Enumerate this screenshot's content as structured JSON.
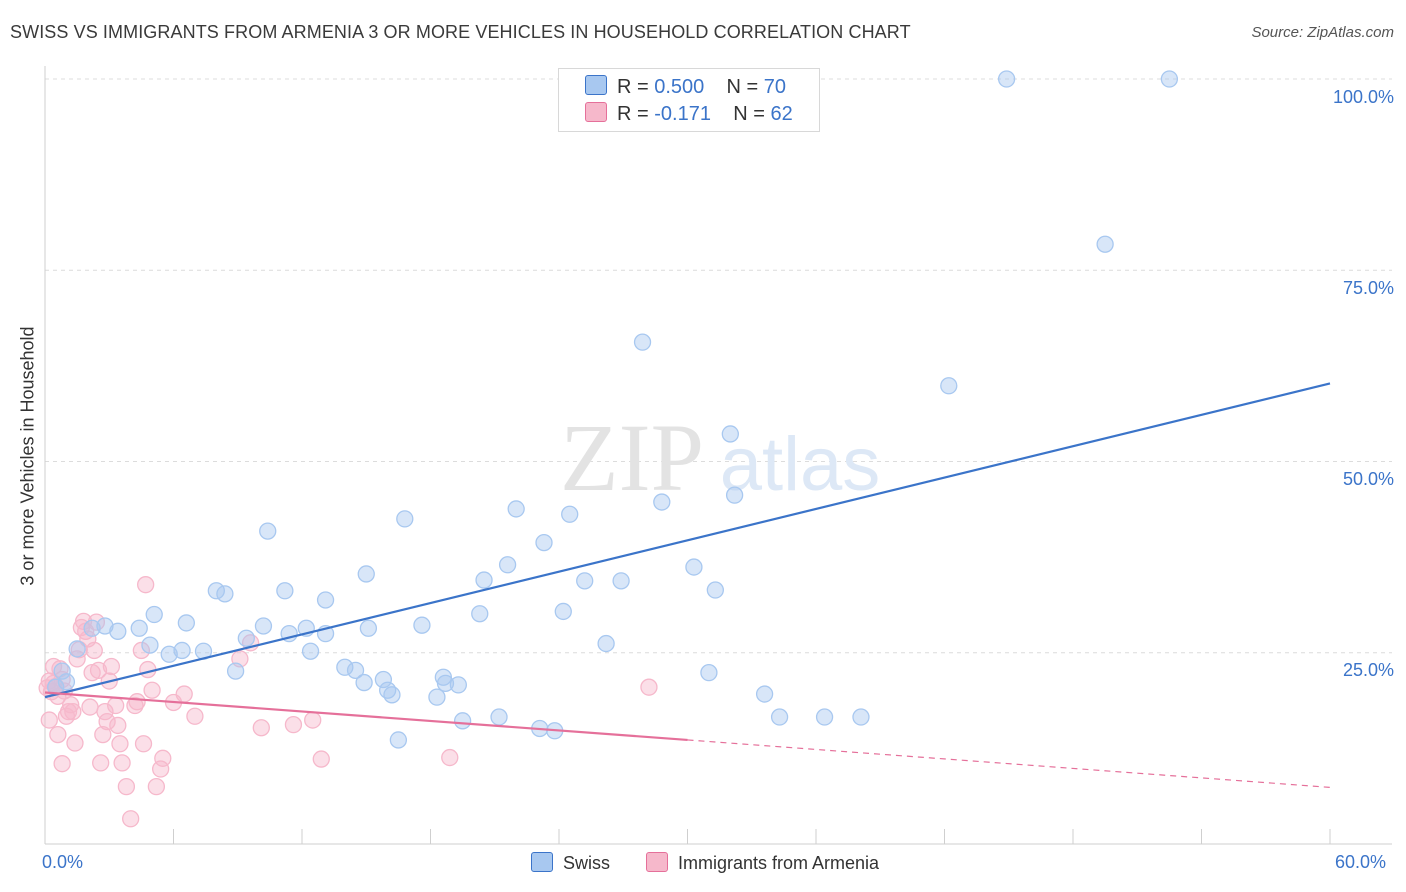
{
  "header": {
    "title": "SWISS VS IMMIGRANTS FROM ARMENIA 3 OR MORE VEHICLES IN HOUSEHOLD CORRELATION CHART",
    "source": "Source: ZipAtlas.com"
  },
  "watermark": {
    "zip": "ZIP",
    "atlas": "atlas"
  },
  "legend": {
    "rows": [
      {
        "r_label": "R =",
        "r_value": "0.500",
        "n_label": "N =",
        "n_value": "70",
        "color": "#a8c8f0"
      },
      {
        "r_label": "R =",
        "r_value": "-0.171",
        "n_label": "N =",
        "n_value": "62",
        "color": "#f6b8cb"
      }
    ]
  },
  "bottom_legend": {
    "swiss": "Swiss",
    "armenia": "Immigrants from Armenia"
  },
  "axes": {
    "ylabel": "3 or more Vehicles in Household",
    "x_min_label": "0.0%",
    "x_max_label": "60.0%",
    "y_ticks": [
      "100.0%",
      "75.0%",
      "50.0%",
      "25.0%"
    ]
  },
  "chart_data": {
    "type": "scatter",
    "title": "SWISS VS IMMIGRANTS FROM ARMENIA 3 OR MORE VEHICLES IN HOUSEHOLD CORRELATION CHART",
    "xlabel": "",
    "ylabel": "3 or more Vehicles in Household",
    "xlim": [
      0,
      60
    ],
    "ylim": [
      0,
      102
    ],
    "y_ticks": [
      25,
      50,
      75,
      100
    ],
    "grid": true,
    "legend_position": "top-center",
    "series": [
      {
        "name": "Swiss",
        "color": "#3b74c9",
        "fill": "#a8c8f0",
        "trend": {
          "x0": 0,
          "y0": 19.2,
          "x1": 60,
          "y1": 60.2,
          "dashed_from": null
        },
        "points": [
          [
            1.0,
            21.2
          ],
          [
            0.8,
            22.6
          ],
          [
            0.5,
            20.5
          ],
          [
            1.5,
            25.5
          ],
          [
            2.2,
            28.2
          ],
          [
            2.8,
            28.5
          ],
          [
            3.4,
            27.8
          ],
          [
            4.4,
            28.2
          ],
          [
            5.1,
            30.0
          ],
          [
            4.9,
            26.0
          ],
          [
            5.8,
            24.8
          ],
          [
            6.4,
            25.3
          ],
          [
            6.6,
            28.9
          ],
          [
            7.4,
            25.2
          ],
          [
            8.0,
            33.1
          ],
          [
            8.4,
            32.7
          ],
          [
            8.9,
            22.6
          ],
          [
            9.4,
            26.9
          ],
          [
            10.2,
            28.5
          ],
          [
            10.4,
            40.9
          ],
          [
            11.2,
            33.1
          ],
          [
            11.4,
            27.5
          ],
          [
            12.4,
            25.2
          ],
          [
            12.2,
            28.2
          ],
          [
            13.1,
            27.5
          ],
          [
            13.1,
            31.9
          ],
          [
            14.0,
            23.1
          ],
          [
            14.5,
            22.7
          ],
          [
            14.9,
            21.1
          ],
          [
            15.0,
            35.3
          ],
          [
            15.1,
            28.2
          ],
          [
            15.8,
            21.5
          ],
          [
            16.0,
            20.1
          ],
          [
            16.5,
            13.6
          ],
          [
            16.2,
            19.5
          ],
          [
            16.8,
            42.5
          ],
          [
            17.6,
            28.6
          ],
          [
            18.3,
            19.2
          ],
          [
            18.6,
            21.8
          ],
          [
            18.7,
            21.0
          ],
          [
            19.3,
            20.8
          ],
          [
            19.5,
            16.1
          ],
          [
            20.3,
            30.1
          ],
          [
            20.5,
            34.5
          ],
          [
            21.2,
            16.6
          ],
          [
            21.6,
            36.5
          ],
          [
            22.0,
            43.8
          ],
          [
            23.1,
            15.1
          ],
          [
            23.3,
            39.4
          ],
          [
            23.8,
            14.8
          ],
          [
            24.5,
            43.1
          ],
          [
            24.2,
            30.4
          ],
          [
            25.2,
            34.4
          ],
          [
            26.2,
            26.2
          ],
          [
            26.9,
            34.4
          ],
          [
            27.9,
            65.6
          ],
          [
            28.8,
            44.7
          ],
          [
            30.3,
            36.2
          ],
          [
            31.0,
            22.4
          ],
          [
            31.3,
            33.2
          ],
          [
            32.0,
            53.6
          ],
          [
            32.2,
            45.6
          ],
          [
            33.6,
            19.6
          ],
          [
            34.3,
            16.6
          ],
          [
            36.4,
            16.6
          ],
          [
            38.1,
            16.6
          ],
          [
            42.2,
            59.9
          ],
          [
            49.5,
            78.4
          ],
          [
            44.9,
            100.0
          ],
          [
            52.5,
            100.0
          ]
        ]
      },
      {
        "name": "Immigrants from Armenia",
        "color": "#e5709a",
        "fill": "#f6b8cb",
        "trend": {
          "x0": 0,
          "y0": 19.8,
          "x1": 60,
          "y1": 7.4,
          "dashed_from": 30
        },
        "points": [
          [
            0.1,
            20.4
          ],
          [
            0.2,
            21.3
          ],
          [
            0.3,
            19.9
          ],
          [
            0.4,
            21.0
          ],
          [
            0.5,
            20.6
          ],
          [
            0.6,
            19.3
          ],
          [
            0.7,
            22.9
          ],
          [
            0.8,
            21.5
          ],
          [
            0.9,
            20.0
          ],
          [
            1.0,
            16.7
          ],
          [
            1.1,
            17.3
          ],
          [
            0.2,
            16.2
          ],
          [
            0.4,
            23.2
          ],
          [
            0.6,
            14.3
          ],
          [
            0.8,
            10.5
          ],
          [
            1.2,
            18.2
          ],
          [
            1.3,
            17.3
          ],
          [
            1.4,
            13.2
          ],
          [
            1.5,
            24.2
          ],
          [
            1.6,
            25.4
          ],
          [
            1.7,
            28.3
          ],
          [
            1.8,
            29.1
          ],
          [
            1.9,
            27.8
          ],
          [
            2.0,
            26.8
          ],
          [
            2.1,
            17.9
          ],
          [
            2.2,
            22.4
          ],
          [
            2.3,
            25.3
          ],
          [
            2.4,
            29.0
          ],
          [
            2.5,
            22.7
          ],
          [
            2.6,
            10.6
          ],
          [
            2.7,
            14.3
          ],
          [
            2.8,
            17.3
          ],
          [
            2.9,
            16.0
          ],
          [
            3.0,
            21.3
          ],
          [
            3.1,
            23.2
          ],
          [
            3.3,
            18.1
          ],
          [
            3.4,
            15.5
          ],
          [
            3.5,
            13.1
          ],
          [
            3.6,
            10.6
          ],
          [
            3.8,
            7.5
          ],
          [
            4.0,
            3.3
          ],
          [
            4.2,
            18.1
          ],
          [
            4.3,
            18.6
          ],
          [
            4.5,
            25.3
          ],
          [
            4.6,
            13.1
          ],
          [
            4.7,
            33.9
          ],
          [
            4.8,
            22.8
          ],
          [
            5.0,
            20.1
          ],
          [
            5.2,
            7.5
          ],
          [
            5.4,
            9.8
          ],
          [
            5.5,
            11.2
          ],
          [
            6.0,
            18.5
          ],
          [
            6.5,
            19.6
          ],
          [
            7.0,
            16.7
          ],
          [
            9.1,
            24.2
          ],
          [
            9.6,
            26.3
          ],
          [
            10.1,
            15.2
          ],
          [
            11.6,
            15.6
          ],
          [
            12.5,
            16.2
          ],
          [
            12.9,
            11.1
          ],
          [
            18.9,
            11.3
          ],
          [
            28.2,
            20.5
          ]
        ]
      }
    ]
  }
}
